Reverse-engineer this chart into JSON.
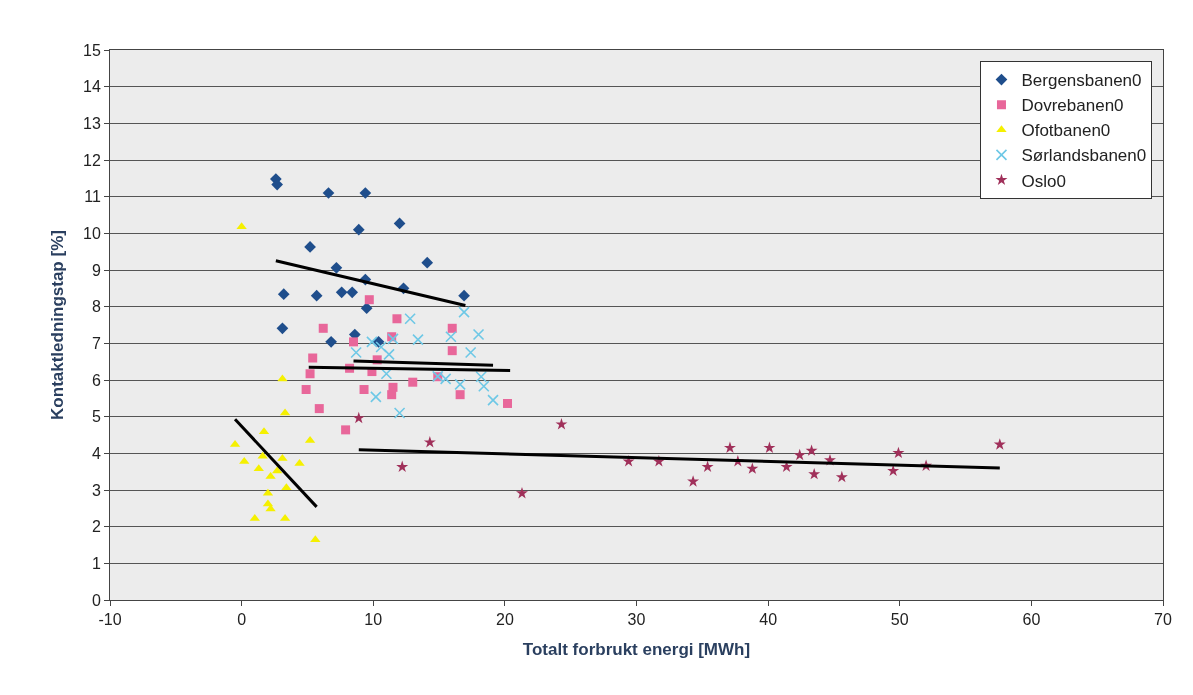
{
  "chart_data": {
    "type": "scatter",
    "xlabel": "Totalt forbrukt energi [MWh]",
    "ylabel": "Kontaktledningstap [%]",
    "xlim": [
      -10,
      70
    ],
    "xticks": [
      -10,
      0,
      10,
      20,
      30,
      40,
      50,
      60,
      70
    ],
    "ylim": [
      0,
      15
    ],
    "yticks": [
      0,
      1,
      2,
      3,
      4,
      5,
      6,
      7,
      8,
      9,
      10,
      11,
      12,
      13,
      14,
      15
    ],
    "grid": "y",
    "legend": "top right",
    "series": [
      {
        "name": "Bergensbanen0",
        "color": "#1f4e8c",
        "marker": "diamond",
        "x": [
          2.6,
          2.7,
          6.6,
          9.4,
          8.9,
          12.0,
          5.2,
          7.2,
          9.4,
          14.1,
          3.2,
          5.7,
          7.6,
          8.4,
          12.3,
          16.9,
          9.5,
          3.1,
          6.8,
          8.6,
          10.4
        ],
        "values": [
          11.48,
          11.33,
          11.1,
          11.1,
          10.1,
          10.27,
          9.63,
          9.06,
          8.74,
          9.2,
          8.34,
          8.3,
          8.39,
          8.39,
          8.5,
          8.3,
          7.96,
          7.41,
          7.04,
          7.24,
          7.04
        ]
      },
      {
        "name": "Dovrebanen0",
        "color": "#e8679a",
        "marker": "square",
        "x": [
          9.7,
          11.8,
          6.2,
          16.0,
          8.5,
          11.4,
          16.0,
          5.4,
          10.3,
          8.2,
          9.9,
          5.2,
          4.9,
          9.3,
          11.5,
          11.4,
          13.0,
          16.6,
          20.2,
          5.9,
          7.9,
          14.9
        ],
        "values": [
          8.19,
          7.67,
          7.41,
          7.41,
          7.04,
          7.18,
          6.8,
          6.6,
          6.55,
          6.32,
          6.23,
          6.17,
          5.74,
          5.74,
          5.8,
          5.6,
          5.94,
          5.6,
          5.36,
          5.22,
          4.64,
          6.09
        ]
      },
      {
        "name": "Ofotbanen0",
        "color": "#f5f000",
        "marker": "triangle",
        "x": [
          0,
          3.1,
          3.3,
          -0.5,
          1.7,
          5.2,
          0.2,
          1.3,
          1.6,
          3.1,
          4.4,
          2.2,
          2.7,
          3.4,
          2.0,
          2.0,
          2.2,
          1.0,
          3.3,
          5.6
        ],
        "values": [
          10.18,
          6.03,
          5.1,
          4.24,
          4.59,
          4.35,
          3.78,
          3.58,
          3.92,
          3.86,
          3.72,
          3.37,
          3.52,
          3.06,
          2.91,
          2.62,
          2.48,
          2.22,
          2.22,
          1.64
        ]
      },
      {
        "name": "Sørlandsbanen0",
        "color": "#6ec8e6",
        "marker": "cross",
        "x": [
          12.8,
          16.9,
          18.0,
          13.4,
          15.9,
          17.4,
          11.5,
          10.6,
          11.2,
          8.7,
          11.0,
          14.9,
          15.5,
          16.6,
          18.2,
          18.4,
          19.1,
          10.2,
          12.0,
          9.9
        ],
        "values": [
          7.67,
          7.85,
          7.24,
          7.1,
          7.18,
          6.75,
          7.12,
          6.9,
          6.7,
          6.75,
          6.17,
          6.1,
          6.03,
          5.88,
          6.09,
          5.83,
          5.45,
          5.54,
          5.1,
          7.04
        ]
      },
      {
        "name": "Oslo0",
        "color": "#a0305a",
        "marker": "star",
        "x": [
          8.9,
          14.3,
          12.2,
          24.3,
          21.3,
          29.4,
          31.7,
          34.3,
          35.4,
          37.1,
          37.7,
          38.8,
          40.1,
          41.4,
          42.4,
          43.3,
          43.5,
          44.7,
          45.6,
          49.9,
          49.5,
          52.0,
          57.6
        ],
        "values": [
          4.96,
          4.3,
          3.63,
          4.79,
          2.91,
          3.78,
          3.78,
          3.23,
          3.63,
          4.15,
          3.78,
          3.58,
          4.15,
          3.63,
          3.95,
          4.07,
          3.43,
          3.81,
          3.35,
          4.01,
          3.52,
          3.66,
          4.24
        ]
      },
      {
        "type": "line",
        "color": "#000000",
        "marker": "none",
        "x": [
          2.6,
          17.0
        ],
        "values": [
          9.25,
          8.03
        ]
      },
      {
        "type": "line",
        "color": "#000000",
        "marker": "none",
        "x": [
          5.1,
          20.4
        ],
        "values": [
          6.35,
          6.26
        ]
      },
      {
        "type": "line",
        "color": "#000000",
        "marker": "none",
        "x": [
          8.5,
          19.1
        ],
        "values": [
          6.52,
          6.4
        ]
      },
      {
        "type": "line",
        "color": "#000000",
        "marker": "none",
        "x": [
          -0.5,
          5.7
        ],
        "values": [
          4.93,
          2.54
        ]
      },
      {
        "type": "line",
        "color": "#000000",
        "marker": "none",
        "x": [
          8.9,
          57.6
        ],
        "values": [
          4.1,
          3.6
        ]
      }
    ]
  }
}
